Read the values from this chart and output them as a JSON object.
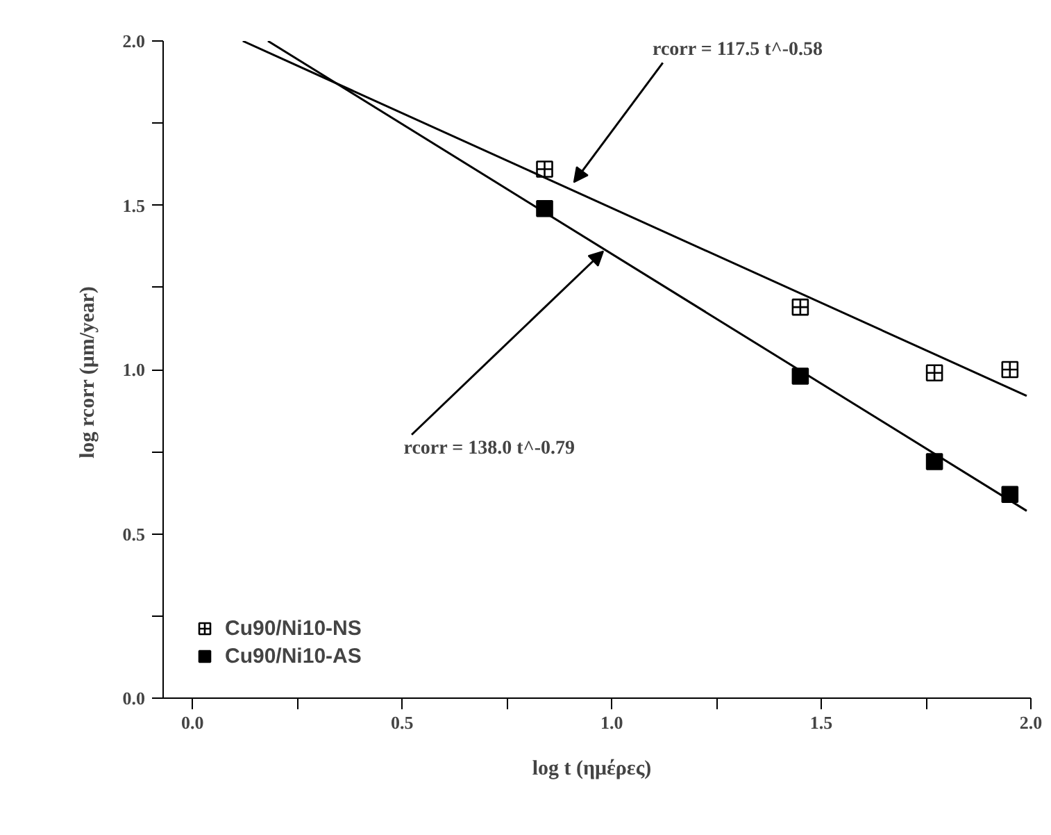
{
  "chart_data": {
    "type": "scatter",
    "xlabel": "log  t  (ημέρες)",
    "ylabel": "log  rcorr (μm/year)",
    "xlim": [
      -0.07,
      2.0
    ],
    "ylim": [
      0.0,
      2.0
    ],
    "xticks": [
      {
        "value": 0.0,
        "label": "0.0"
      },
      {
        "value": 0.25,
        "label": null
      },
      0.5,
      {
        "value": 0.75,
        "label": null
      },
      {
        "value": 1.0,
        "label": "1.0"
      },
      {
        "value": 1.25,
        "label": null
      },
      1.5,
      {
        "value": 1.75,
        "label": null
      },
      {
        "value": 2.0,
        "label": "2.0"
      }
    ],
    "yticks": [
      {
        "value": 0.0,
        "label": "0.0"
      },
      {
        "value": 0.25,
        "label": null
      },
      0.5,
      {
        "value": 0.75,
        "label": null
      },
      {
        "value": 1.0,
        "label": "1.0"
      },
      {
        "value": 1.25,
        "label": null
      },
      1.5,
      {
        "value": 1.75,
        "label": null
      },
      {
        "value": 2.0,
        "label": "2.0"
      }
    ],
    "grid": false,
    "legend": "bottom left",
    "series": [
      {
        "name": "Cu90/Ni10-NS",
        "color": "#000000",
        "marker": "cross",
        "x": [
          0.84,
          1.45,
          1.77,
          1.95
        ],
        "values": [
          1.61,
          1.19,
          0.99,
          1.0
        ]
      },
      {
        "name": "Cu90/Ni10-AS",
        "color": "#000000",
        "marker": "square",
        "x": [
          0.84,
          1.45,
          1.77,
          1.95
        ],
        "values": [
          1.49,
          0.98,
          0.72,
          0.62
        ]
      },
      {
        "type": "line",
        "color": "#000000",
        "x": [
          0.12,
          1.99
        ],
        "values": [
          2.0,
          0.92
        ]
      },
      {
        "type": "line",
        "color": "#000000",
        "x": [
          0.18,
          1.99
        ],
        "values": [
          2.0,
          0.57
        ]
      }
    ],
    "annotations": [
      {
        "text": "rcorr = 117.5 t^-0.58",
        "x": 0.91,
        "y": 1.57
      },
      {
        "text": "rcorr = 138.0 t^-0.79",
        "x": 0.98,
        "y": 1.36
      }
    ]
  }
}
